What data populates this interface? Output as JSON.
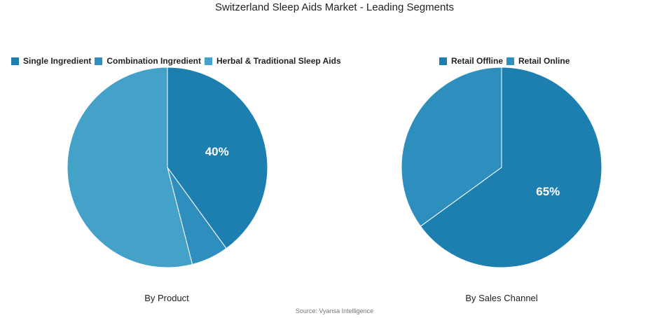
{
  "title": "Switzerland Sleep Aids Market - Leading Segments",
  "source": "Source: Vyansa Intelligence",
  "chart_data": [
    {
      "type": "pie",
      "caption": "By Product",
      "legend_position": "top",
      "slices": [
        {
          "label": "Single Ingredient",
          "value": 40,
          "color": "#1c7fb0",
          "data_label": "40%"
        },
        {
          "label": "Combination Ingredient",
          "value": 6,
          "color": "#2e8fbe",
          "data_label": ""
        },
        {
          "label": "Herbal & Traditional Sleep Aids",
          "value": 54,
          "color": "#44a2c8",
          "data_label": ""
        }
      ]
    },
    {
      "type": "pie",
      "caption": "By Sales Channel",
      "legend_position": "top",
      "slices": [
        {
          "label": "Retail Offline",
          "value": 65,
          "color": "#1c7fb0",
          "data_label": "65%"
        },
        {
          "label": "Retail Online",
          "value": 35,
          "color": "#2e8fbe",
          "data_label": ""
        }
      ]
    }
  ]
}
